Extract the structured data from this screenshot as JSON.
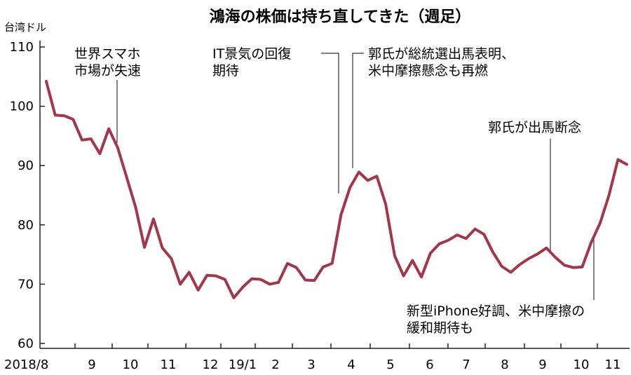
{
  "chart_data": {
    "type": "line",
    "title": "鴻海の株価は持ち直してきた（週足）",
    "ylabel": "台湾ドル",
    "ylim": [
      60,
      110
    ],
    "yticks": [
      60,
      70,
      80,
      90,
      100,
      110
    ],
    "grid": false,
    "x_tick_labels": [
      "2018/8",
      "9",
      "10",
      "11",
      "12",
      "19/1",
      "2",
      "3",
      "4",
      "5",
      "6",
      "7",
      "8",
      "9",
      "10",
      "11"
    ],
    "series": [
      {
        "color": "#a3364a",
        "values": [
          104.2,
          98.5,
          98.4,
          97.8,
          94.3,
          94.5,
          92.0,
          96.2,
          93.0,
          88.0,
          83.0,
          76.2,
          81.0,
          76.1,
          74.3,
          70.0,
          72.0,
          69.0,
          71.5,
          71.4,
          70.8,
          67.7,
          69.5,
          70.9,
          70.8,
          70.0,
          70.3,
          73.5,
          72.8,
          70.7,
          70.6,
          72.9,
          73.5,
          81.7,
          86.3,
          88.9,
          87.5,
          88.2,
          83.5,
          74.8,
          71.4,
          74.0,
          71.2,
          75.2,
          76.8,
          77.4,
          78.3,
          77.7,
          79.3,
          78.4,
          75.4,
          73.0,
          72.0,
          73.3,
          74.3,
          75.1,
          76.1,
          74.5,
          73.2,
          72.8,
          72.9,
          77.0,
          80.3,
          85.0,
          91.0,
          90.2
        ]
      }
    ],
    "annotations": [
      {
        "lines": [
          "世界スマホ",
          "市場が失速"
        ],
        "x_index": 8
      },
      {
        "lines": [
          "IT景気の回復",
          "期待"
        ],
        "x_index": 34
      },
      {
        "lines": [
          "郭氏が総統選出馬表明、",
          "米中摩擦懸念も再燃"
        ],
        "x_index": 35
      },
      {
        "lines": [
          "郭氏が出馬断念"
        ],
        "x_index": 56
      },
      {
        "lines": [
          "新型iPhone好調、米中摩擦の",
          "緩和期待も"
        ],
        "x_index": 62
      }
    ]
  }
}
